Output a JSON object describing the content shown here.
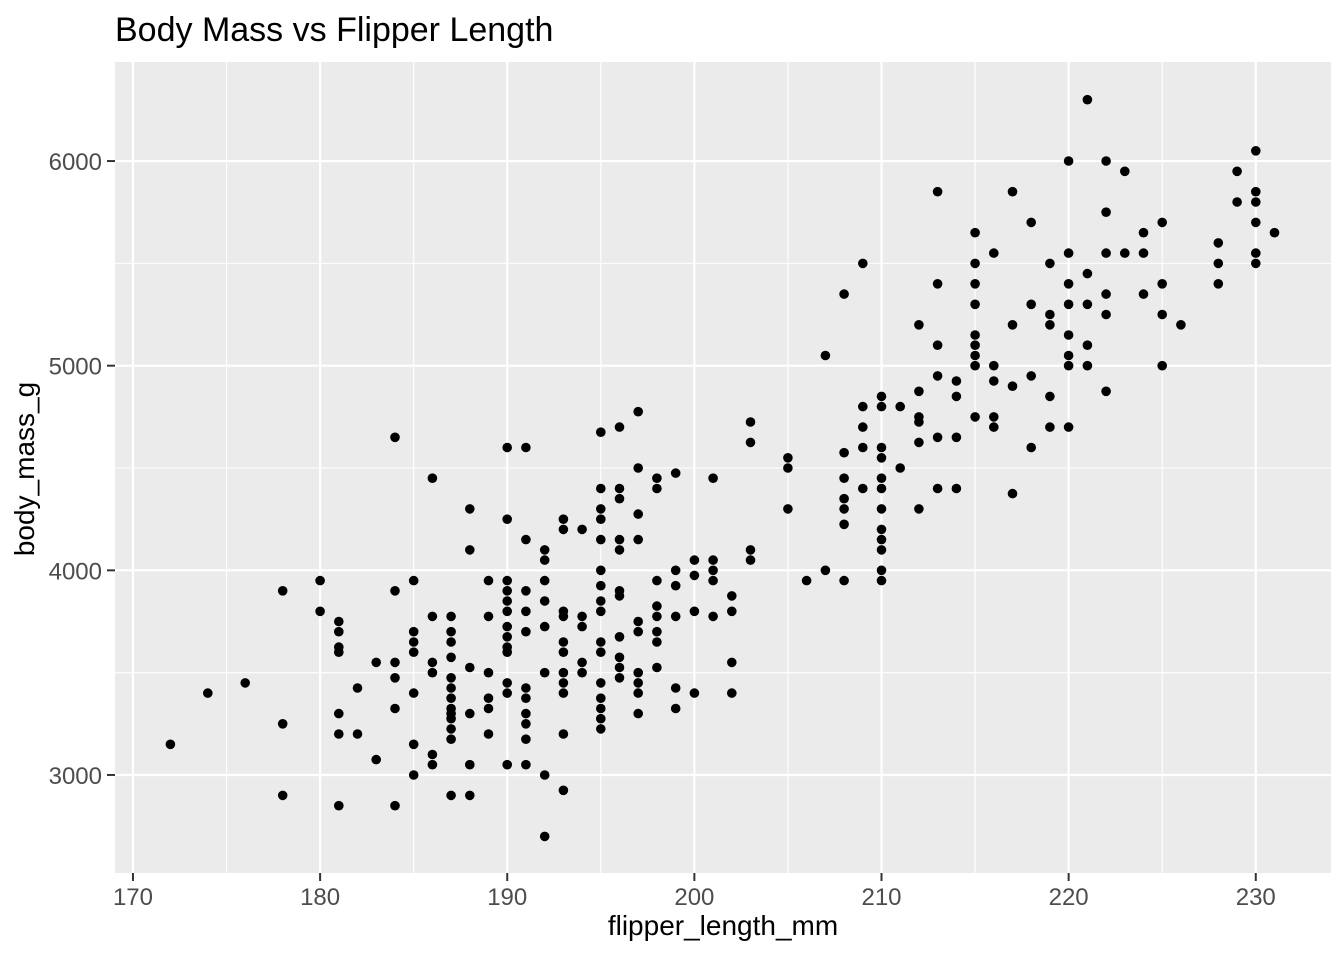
{
  "chart_data": {
    "type": "scatter",
    "title": "Body Mass vs Flipper Length",
    "xlabel": "flipper_length_mm",
    "ylabel": "body_mass_g",
    "x_ticks": [
      170,
      180,
      190,
      200,
      210,
      220,
      230
    ],
    "y_ticks": [
      3000,
      4000,
      5000,
      6000
    ],
    "x_minor": [
      175,
      185,
      195,
      205,
      215,
      225
    ],
    "y_minor": [
      3500,
      4500,
      5500
    ],
    "xlim": [
      169.04,
      234.02
    ],
    "ylim": [
      2521,
      6484
    ],
    "grid": true,
    "legend": "none",
    "theme": {
      "panel_bg": "#EBEBEB",
      "grid": "#FFFFFF",
      "point": "#000000",
      "tick": "#333333",
      "tick_label": "#4D4D4D",
      "text": "#000000",
      "background": "#FFFFFF"
    },
    "points": [
      [
        221,
        6300
      ],
      [
        230,
        6050
      ],
      [
        220,
        6000
      ],
      [
        222,
        6000
      ],
      [
        223,
        5950
      ],
      [
        229,
        5950
      ],
      [
        213,
        5850
      ],
      [
        217,
        5850
      ],
      [
        230,
        5850
      ],
      [
        229,
        5800
      ],
      [
        230,
        5800
      ],
      [
        222,
        5750
      ],
      [
        218,
        5700
      ],
      [
        225,
        5700
      ],
      [
        230,
        5700
      ],
      [
        215,
        5650
      ],
      [
        224,
        5650
      ],
      [
        231,
        5650
      ],
      [
        228,
        5600
      ],
      [
        216,
        5550
      ],
      [
        220,
        5550
      ],
      [
        222,
        5550
      ],
      [
        223,
        5550
      ],
      [
        224,
        5550
      ],
      [
        230,
        5550
      ],
      [
        209,
        5500
      ],
      [
        215,
        5500
      ],
      [
        219,
        5500
      ],
      [
        228,
        5500
      ],
      [
        230,
        5500
      ],
      [
        221,
        5450
      ],
      [
        213,
        5400
      ],
      [
        215,
        5400
      ],
      [
        220,
        5400
      ],
      [
        225,
        5400
      ],
      [
        228,
        5400
      ],
      [
        208,
        5350
      ],
      [
        222,
        5350
      ],
      [
        224,
        5350
      ],
      [
        215,
        5300
      ],
      [
        218,
        5300
      ],
      [
        220,
        5300
      ],
      [
        221,
        5300
      ],
      [
        219,
        5250
      ],
      [
        222,
        5250
      ],
      [
        225,
        5250
      ],
      [
        212,
        5200
      ],
      [
        217,
        5200
      ],
      [
        219,
        5200
      ],
      [
        226,
        5200
      ],
      [
        215,
        5150
      ],
      [
        220,
        5150
      ],
      [
        213,
        5100
      ],
      [
        215,
        5100
      ],
      [
        221,
        5100
      ],
      [
        207,
        5050
      ],
      [
        215,
        5050
      ],
      [
        220,
        5050
      ],
      [
        215,
        5000
      ],
      [
        216,
        5000
      ],
      [
        220,
        5000
      ],
      [
        221,
        5000
      ],
      [
        225,
        5000
      ],
      [
        213,
        4950
      ],
      [
        218,
        4950
      ],
      [
        214,
        4925
      ],
      [
        216,
        4925
      ],
      [
        217,
        4900
      ],
      [
        212,
        4875
      ],
      [
        222,
        4875
      ],
      [
        210,
        4850
      ],
      [
        214,
        4850
      ],
      [
        219,
        4850
      ],
      [
        209,
        4800
      ],
      [
        210,
        4800
      ],
      [
        211,
        4800
      ],
      [
        197,
        4775
      ],
      [
        212,
        4750
      ],
      [
        215,
        4750
      ],
      [
        216,
        4750
      ],
      [
        212,
        4725
      ],
      [
        203,
        4725
      ],
      [
        196,
        4700
      ],
      [
        209,
        4700
      ],
      [
        216,
        4700
      ],
      [
        219,
        4700
      ],
      [
        220,
        4700
      ],
      [
        195,
        4675
      ],
      [
        184,
        4650
      ],
      [
        213,
        4650
      ],
      [
        214,
        4650
      ],
      [
        203,
        4625
      ],
      [
        212,
        4625
      ],
      [
        190,
        4600
      ],
      [
        191,
        4600
      ],
      [
        209,
        4600
      ],
      [
        210,
        4600
      ],
      [
        218,
        4600
      ],
      [
        208,
        4575
      ],
      [
        205,
        4550
      ],
      [
        210,
        4550
      ],
      [
        197,
        4500
      ],
      [
        205,
        4500
      ],
      [
        211,
        4500
      ],
      [
        199,
        4475
      ],
      [
        186,
        4450
      ],
      [
        198,
        4450
      ],
      [
        201,
        4450
      ],
      [
        208,
        4450
      ],
      [
        210,
        4450
      ],
      [
        195,
        4400
      ],
      [
        196,
        4400
      ],
      [
        198,
        4400
      ],
      [
        209,
        4400
      ],
      [
        210,
        4400
      ],
      [
        213,
        4400
      ],
      [
        214,
        4400
      ],
      [
        217,
        4375
      ],
      [
        196,
        4350
      ],
      [
        208,
        4350
      ],
      [
        188,
        4300
      ],
      [
        195,
        4300
      ],
      [
        205,
        4300
      ],
      [
        208,
        4300
      ],
      [
        210,
        4300
      ],
      [
        212,
        4300
      ],
      [
        197,
        4275
      ],
      [
        190,
        4250
      ],
      [
        193,
        4250
      ],
      [
        195,
        4250
      ],
      [
        208,
        4225
      ],
      [
        193,
        4200
      ],
      [
        194,
        4200
      ],
      [
        210,
        4200
      ],
      [
        191,
        4150
      ],
      [
        195,
        4150
      ],
      [
        196,
        4150
      ],
      [
        197,
        4150
      ],
      [
        210,
        4150
      ],
      [
        188,
        4100
      ],
      [
        192,
        4100
      ],
      [
        196,
        4100
      ],
      [
        203,
        4100
      ],
      [
        210,
        4100
      ],
      [
        192,
        4050
      ],
      [
        200,
        4050
      ],
      [
        201,
        4050
      ],
      [
        203,
        4050
      ],
      [
        195,
        4000
      ],
      [
        199,
        4000
      ],
      [
        201,
        4000
      ],
      [
        207,
        4000
      ],
      [
        210,
        4000
      ],
      [
        200,
        3975
      ],
      [
        180,
        3950
      ],
      [
        185,
        3950
      ],
      [
        189,
        3950
      ],
      [
        190,
        3950
      ],
      [
        192,
        3950
      ],
      [
        198,
        3950
      ],
      [
        201,
        3950
      ],
      [
        206,
        3950
      ],
      [
        208,
        3950
      ],
      [
        210,
        3950
      ],
      [
        195,
        3925
      ],
      [
        199,
        3925
      ],
      [
        178,
        3900
      ],
      [
        184,
        3900
      ],
      [
        190,
        3900
      ],
      [
        191,
        3900
      ],
      [
        196,
        3900
      ],
      [
        196,
        3875
      ],
      [
        202,
        3875
      ],
      [
        190,
        3850
      ],
      [
        192,
        3850
      ],
      [
        195,
        3850
      ],
      [
        198,
        3825
      ],
      [
        180,
        3800
      ],
      [
        190,
        3800
      ],
      [
        191,
        3800
      ],
      [
        193,
        3800
      ],
      [
        195,
        3800
      ],
      [
        200,
        3800
      ],
      [
        202,
        3800
      ],
      [
        186,
        3775
      ],
      [
        187,
        3775
      ],
      [
        189,
        3775
      ],
      [
        193,
        3775
      ],
      [
        194,
        3775
      ],
      [
        198,
        3775
      ],
      [
        199,
        3775
      ],
      [
        201,
        3775
      ],
      [
        181,
        3750
      ],
      [
        197,
        3750
      ],
      [
        190,
        3725
      ],
      [
        192,
        3725
      ],
      [
        194,
        3725
      ],
      [
        181,
        3700
      ],
      [
        185,
        3700
      ],
      [
        187,
        3700
      ],
      [
        191,
        3700
      ],
      [
        197,
        3700
      ],
      [
        198,
        3700
      ],
      [
        190,
        3675
      ],
      [
        196,
        3675
      ],
      [
        185,
        3650
      ],
      [
        187,
        3650
      ],
      [
        193,
        3650
      ],
      [
        195,
        3650
      ],
      [
        198,
        3650
      ],
      [
        181,
        3625
      ],
      [
        190,
        3625
      ],
      [
        181,
        3600
      ],
      [
        185,
        3600
      ],
      [
        190,
        3600
      ],
      [
        193,
        3600
      ],
      [
        195,
        3600
      ],
      [
        187,
        3575
      ],
      [
        196,
        3575
      ],
      [
        183,
        3550
      ],
      [
        184,
        3550
      ],
      [
        186,
        3550
      ],
      [
        194,
        3550
      ],
      [
        202,
        3550
      ],
      [
        188,
        3525
      ],
      [
        196,
        3525
      ],
      [
        198,
        3525
      ],
      [
        186,
        3500
      ],
      [
        189,
        3500
      ],
      [
        192,
        3500
      ],
      [
        193,
        3500
      ],
      [
        194,
        3500
      ],
      [
        197,
        3500
      ],
      [
        184,
        3475
      ],
      [
        187,
        3475
      ],
      [
        196,
        3475
      ],
      [
        176,
        3450
      ],
      [
        190,
        3450
      ],
      [
        193,
        3450
      ],
      [
        195,
        3450
      ],
      [
        197,
        3450
      ],
      [
        182,
        3425
      ],
      [
        187,
        3425
      ],
      [
        191,
        3425
      ],
      [
        199,
        3425
      ],
      [
        174,
        3400
      ],
      [
        185,
        3400
      ],
      [
        190,
        3400
      ],
      [
        193,
        3400
      ],
      [
        197,
        3400
      ],
      [
        200,
        3400
      ],
      [
        202,
        3400
      ],
      [
        187,
        3375
      ],
      [
        189,
        3375
      ],
      [
        191,
        3375
      ],
      [
        195,
        3375
      ],
      [
        184,
        3325
      ],
      [
        187,
        3325
      ],
      [
        189,
        3325
      ],
      [
        195,
        3325
      ],
      [
        199,
        3325
      ],
      [
        181,
        3300
      ],
      [
        187,
        3300
      ],
      [
        188,
        3300
      ],
      [
        191,
        3300
      ],
      [
        197,
        3300
      ],
      [
        187,
        3275
      ],
      [
        195,
        3275
      ],
      [
        178,
        3250
      ],
      [
        191,
        3250
      ],
      [
        187,
        3225
      ],
      [
        195,
        3225
      ],
      [
        181,
        3200
      ],
      [
        182,
        3200
      ],
      [
        189,
        3200
      ],
      [
        193,
        3200
      ],
      [
        187,
        3175
      ],
      [
        191,
        3175
      ],
      [
        172,
        3150
      ],
      [
        185,
        3150
      ],
      [
        186,
        3100
      ],
      [
        183,
        3075
      ],
      [
        186,
        3050
      ],
      [
        188,
        3050
      ],
      [
        190,
        3050
      ],
      [
        191,
        3050
      ],
      [
        185,
        3000
      ],
      [
        192,
        3000
      ],
      [
        193,
        2925
      ],
      [
        178,
        2900
      ],
      [
        187,
        2900
      ],
      [
        188,
        2900
      ],
      [
        181,
        2850
      ],
      [
        184,
        2850
      ],
      [
        192,
        2700
      ]
    ]
  }
}
